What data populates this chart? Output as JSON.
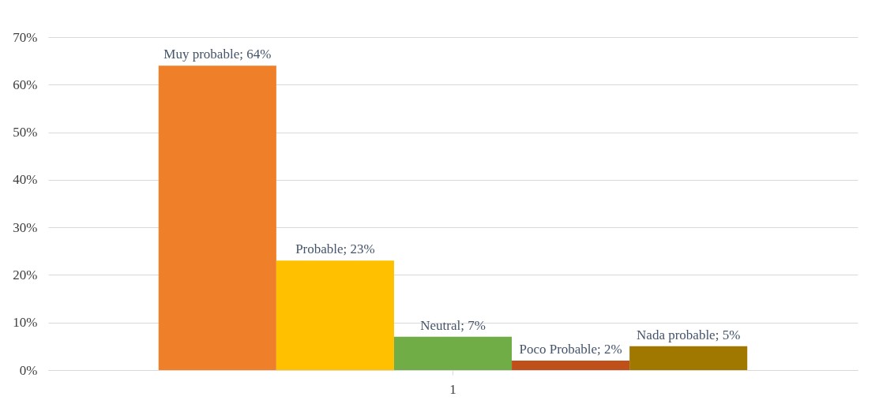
{
  "chart_data": {
    "type": "bar",
    "categories": [
      "1"
    ],
    "series": [
      {
        "color": "#f07f2a",
        "values": [
          64
        ],
        "value_labels": [
          "Muy probable; 64%"
        ]
      },
      {
        "color": "#ffc000",
        "values": [
          23
        ],
        "value_labels": [
          "Probable; 23%"
        ]
      },
      {
        "color": "#70ad47",
        "values": [
          7
        ],
        "value_labels": [
          "Neutral; 7%"
        ]
      },
      {
        "color": "#c0501a",
        "values": [
          2
        ],
        "value_labels": [
          "Poco Probable; 2%"
        ]
      },
      {
        "color": "#a07800",
        "values": [
          5
        ],
        "value_labels": [
          "Nada probable; 5%"
        ]
      }
    ],
    "ylim": [
      0,
      70
    ],
    "yticks": [
      {
        "value": 0,
        "label": "0%"
      },
      {
        "value": 10,
        "label": "10%"
      },
      {
        "value": 20,
        "label": "20%"
      },
      {
        "value": 30,
        "label": "30%"
      },
      {
        "value": 40,
        "label": "40%"
      },
      {
        "value": 50,
        "label": "50%"
      },
      {
        "value": 60,
        "label": "60%"
      },
      {
        "value": 70,
        "label": "70%"
      }
    ],
    "grid": "y",
    "legend": false
  }
}
